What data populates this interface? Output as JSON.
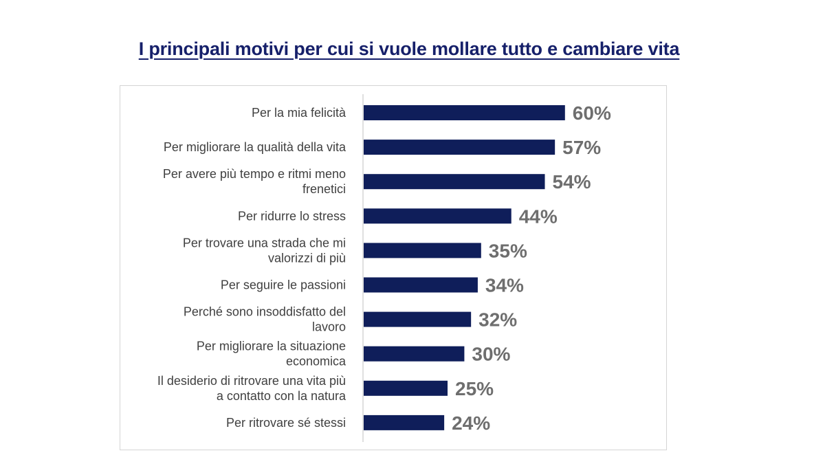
{
  "page": {
    "title": "I principali motivi per cui si vuole mollare tutto e cambiare vita"
  },
  "chart_data": {
    "type": "bar",
    "orientation": "horizontal",
    "title": "I principali motivi per cui si vuole mollare tutto e cambiare vita",
    "xlabel": "",
    "ylabel": "",
    "xlim": [
      0,
      100
    ],
    "grid": false,
    "legend": "none",
    "bar_color": "#0f1e5a",
    "value_suffix": "%",
    "categories": [
      [
        "Per la mia felicità"
      ],
      [
        "Per migliorare la qualità della vita"
      ],
      [
        "Per avere più tempo e ritmi meno",
        "frenetici"
      ],
      [
        "Per ridurre lo stress"
      ],
      [
        "Per trovare una strada che mi",
        "valorizzi di più"
      ],
      [
        "Per seguire le passioni"
      ],
      [
        "Perché sono insoddisfatto del",
        "lavoro"
      ],
      [
        "Per migliorare la  situazione",
        "economica"
      ],
      [
        "Il desiderio di ritrovare una vita più",
        "a contatto con la natura"
      ],
      [
        "Per ritrovare sé stessi"
      ]
    ],
    "values": [
      60,
      57,
      54,
      44,
      35,
      34,
      32,
      30,
      25,
      24
    ],
    "value_labels": [
      "60%",
      "57%",
      "54%",
      "44%",
      "35%",
      "34%",
      "32%",
      "30%",
      "25%",
      "24%"
    ]
  }
}
